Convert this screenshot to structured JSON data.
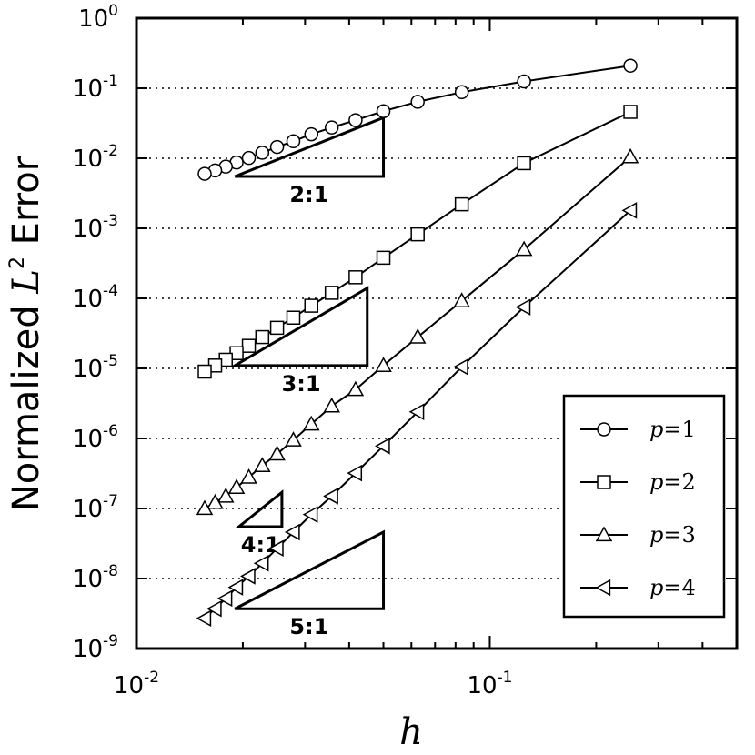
{
  "chart_data": {
    "type": "line",
    "title": "",
    "xlabel": "h",
    "ylabel_prefix": "Normalized ",
    "ylabel_symbol": "L",
    "ylabel_sup": "2",
    "ylabel_suffix": " Error",
    "x_scale": "log",
    "y_scale": "log",
    "xlim": [
      0.01,
      0.5
    ],
    "ylim": [
      1e-09,
      1
    ],
    "grid": "horizontal dotted lines at major y ticks",
    "legend_position": "lower-right",
    "x_ticks": [
      {
        "value": 0.01,
        "base": "10",
        "exp": "-2"
      },
      {
        "value": 0.1,
        "base": "10",
        "exp": "-1"
      }
    ],
    "y_ticks": [
      {
        "value": 1,
        "base": "10",
        "exp": "0"
      },
      {
        "value": 0.1,
        "base": "10",
        "exp": "-1"
      },
      {
        "value": 0.01,
        "base": "10",
        "exp": "-2"
      },
      {
        "value": 0.001,
        "base": "10",
        "exp": "-3"
      },
      {
        "value": 0.0001,
        "base": "10",
        "exp": "-4"
      },
      {
        "value": 1e-05,
        "base": "10",
        "exp": "-5"
      },
      {
        "value": 1e-06,
        "base": "10",
        "exp": "-6"
      },
      {
        "value": 1e-07,
        "base": "10",
        "exp": "-7"
      },
      {
        "value": 1e-08,
        "base": "10",
        "exp": "-8"
      },
      {
        "value": 1e-09,
        "base": "10",
        "exp": "-9"
      }
    ],
    "series": [
      {
        "name": "p=1",
        "legend_var": "p",
        "legend_eq": "=",
        "legend_val": "1",
        "marker": "circle",
        "points": [
          [
            0.25,
            0.21
          ],
          [
            0.125,
            0.125
          ],
          [
            0.0833,
            0.088
          ],
          [
            0.0625,
            0.064
          ],
          [
            0.05,
            0.047
          ],
          [
            0.0417,
            0.035
          ],
          [
            0.0357,
            0.0275
          ],
          [
            0.03125,
            0.022
          ],
          [
            0.0278,
            0.0175
          ],
          [
            0.025,
            0.0145
          ],
          [
            0.0227,
            0.012
          ],
          [
            0.0208,
            0.0101
          ],
          [
            0.0192,
            0.0087
          ],
          [
            0.0179,
            0.0076
          ],
          [
            0.0167,
            0.0067
          ],
          [
            0.0156,
            0.006
          ]
        ]
      },
      {
        "name": "p=2",
        "legend_var": "p",
        "legend_eq": "=",
        "legend_val": "2",
        "marker": "square",
        "points": [
          [
            0.25,
            0.046
          ],
          [
            0.125,
            0.0085
          ],
          [
            0.0833,
            0.0022
          ],
          [
            0.0625,
            0.00082
          ],
          [
            0.05,
            0.00038
          ],
          [
            0.0417,
            0.0002
          ],
          [
            0.0357,
            0.00012
          ],
          [
            0.03125,
            7.85e-05
          ],
          [
            0.0278,
            5.3e-05
          ],
          [
            0.025,
            3.8e-05
          ],
          [
            0.0227,
            2.8e-05
          ],
          [
            0.0208,
            2.1e-05
          ],
          [
            0.0192,
            1.65e-05
          ],
          [
            0.0179,
            1.33e-05
          ],
          [
            0.0167,
            1.1e-05
          ],
          [
            0.0156,
            9e-06
          ]
        ]
      },
      {
        "name": "p=3",
        "legend_var": "p",
        "legend_eq": "=",
        "legend_val": "3",
        "marker": "triangle-up",
        "points": [
          [
            0.25,
            0.0105
          ],
          [
            0.125,
            0.0005
          ],
          [
            0.0833,
            9.2e-05
          ],
          [
            0.0625,
            2.8e-05
          ],
          [
            0.05,
            1.1e-05
          ],
          [
            0.0417,
            5e-06
          ],
          [
            0.0357,
            2.9e-06
          ],
          [
            0.03125,
            1.6e-06
          ],
          [
            0.0278,
            9.5e-07
          ],
          [
            0.025,
            6e-07
          ],
          [
            0.0227,
            4.1e-07
          ],
          [
            0.0208,
            2.8e-07
          ],
          [
            0.0192,
            2e-07
          ],
          [
            0.0179,
            1.5e-07
          ],
          [
            0.0167,
            1.22e-07
          ],
          [
            0.0156,
            1e-07
          ]
        ]
      },
      {
        "name": "p=4",
        "legend_var": "p",
        "legend_eq": "=",
        "legend_val": "4",
        "marker": "triangle-left",
        "points": [
          [
            0.25,
            0.0018
          ],
          [
            0.125,
            7.5e-05
          ],
          [
            0.0833,
            1.05e-05
          ],
          [
            0.0625,
            2.4e-06
          ],
          [
            0.05,
            7.8e-07
          ],
          [
            0.0417,
            3.2e-07
          ],
          [
            0.0357,
            1.5e-07
          ],
          [
            0.03125,
            8.2e-08
          ],
          [
            0.0278,
            4.6e-08
          ],
          [
            0.025,
            2.7e-08
          ],
          [
            0.0227,
            1.65e-08
          ],
          [
            0.0208,
            1.08e-08
          ],
          [
            0.0192,
            7.5e-09
          ],
          [
            0.0179,
            5.2e-09
          ],
          [
            0.0167,
            3.7e-09
          ],
          [
            0.0156,
            2.7e-09
          ]
        ]
      }
    ],
    "slope_triangles": [
      {
        "label": "2:1",
        "x_left": 0.019,
        "x_right": 0.05,
        "y_bottom": 0.0055,
        "y_top": 0.038
      },
      {
        "label": "3:1",
        "x_left": 0.019,
        "x_right": 0.045,
        "y_bottom": 1.1e-05,
        "y_top": 0.00014
      },
      {
        "label": "4:1",
        "x_left": 0.0195,
        "x_right": 0.0258,
        "y_bottom": 5.5e-08,
        "y_top": 1.7e-07
      },
      {
        "label": "5:1",
        "x_left": 0.019,
        "x_right": 0.05,
        "y_bottom": 3.7e-09,
        "y_top": 4.6e-08
      }
    ]
  }
}
